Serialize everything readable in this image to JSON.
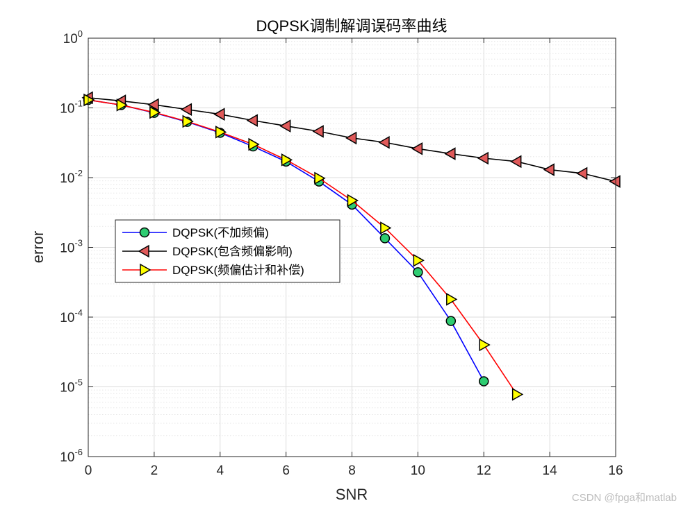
{
  "chart_data": {
    "type": "line",
    "title": "DQPSK调制解调误码率曲线",
    "xlabel": "SNR",
    "ylabel": "error",
    "xlim": [
      0,
      16
    ],
    "ylim": [
      1e-06,
      1
    ],
    "yscale": "log",
    "xticks": [
      0,
      2,
      4,
      6,
      8,
      10,
      12,
      14,
      16
    ],
    "yticks": [
      {
        "value": 1e-06,
        "base": "10",
        "exp": "-6"
      },
      {
        "value": 1e-05,
        "base": "10",
        "exp": "-5"
      },
      {
        "value": 0.0001,
        "base": "10",
        "exp": "-4"
      },
      {
        "value": 0.001,
        "base": "10",
        "exp": "-3"
      },
      {
        "value": 0.01,
        "base": "10",
        "exp": "-2"
      },
      {
        "value": 0.1,
        "base": "10",
        "exp": "-1"
      },
      {
        "value": 1,
        "base": "10",
        "exp": "0"
      }
    ],
    "grid": true,
    "legend_position": "center-left",
    "series": [
      {
        "name": "DQPSK(不加频偏)",
        "color": "#0000ff",
        "marker": "circle",
        "marker_fill": "#2ecc71",
        "x": [
          0,
          1,
          2,
          3,
          4,
          5,
          6,
          7,
          8,
          9,
          10,
          11,
          12
        ],
        "y": [
          0.13,
          0.11,
          0.085,
          0.063,
          0.044,
          0.028,
          0.017,
          0.0088,
          0.0041,
          0.00135,
          0.00044,
          8.8e-05,
          1.2e-05
        ]
      },
      {
        "name": "DQPSK(包含频偏影响)",
        "color": "#000000",
        "marker": "triangle-left",
        "marker_fill": "#e05a5a",
        "x": [
          0,
          1,
          2,
          3,
          4,
          5,
          6,
          7,
          8,
          9,
          10,
          11,
          12,
          13,
          14,
          15,
          16
        ],
        "y": [
          0.14,
          0.126,
          0.111,
          0.095,
          0.081,
          0.066,
          0.055,
          0.046,
          0.037,
          0.032,
          0.026,
          0.022,
          0.019,
          0.017,
          0.013,
          0.0115,
          0.0088
        ]
      },
      {
        "name": "DQPSK(频偏估计和补偿)",
        "color": "#ff0000",
        "marker": "triangle-right",
        "marker_fill": "#ffff00",
        "x": [
          0,
          1,
          2,
          3,
          4,
          5,
          6,
          7,
          8,
          9,
          10,
          11,
          12,
          13
        ],
        "y": [
          0.13,
          0.11,
          0.086,
          0.064,
          0.045,
          0.03,
          0.018,
          0.0098,
          0.0047,
          0.0019,
          0.00065,
          0.00018,
          4e-05,
          7.8e-06
        ]
      }
    ]
  },
  "watermark": "CSDN @fpga和matlab"
}
